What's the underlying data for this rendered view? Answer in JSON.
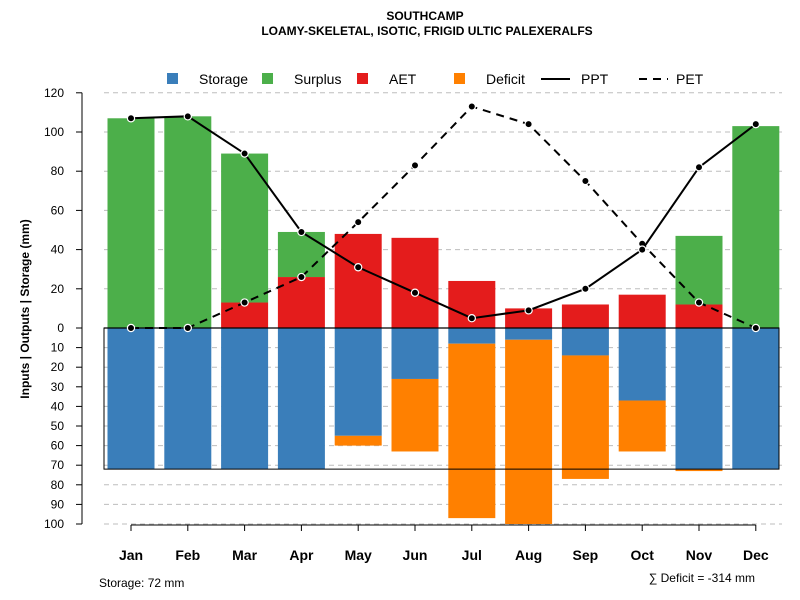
{
  "chart_data": {
    "type": "bar",
    "title": "SOUTHCAMP",
    "subtitle": "LOAMY-SKELETAL, ISOTIC, FRIGID ULTIC PALEXERALFS",
    "ylabel": "Inputs | Outputs | Storage    (mm)",
    "categories": [
      "Jan",
      "Feb",
      "Mar",
      "Apr",
      "May",
      "Jun",
      "Jul",
      "Aug",
      "Sep",
      "Oct",
      "Nov",
      "Dec"
    ],
    "upper_ticks": [
      "0",
      "20",
      "40",
      "60",
      "80",
      "100",
      "120"
    ],
    "lower_ticks": [
      "10",
      "20",
      "30",
      "40",
      "50",
      "60",
      "70",
      "80",
      "90",
      "100"
    ],
    "upper_ylim": [
      0,
      120
    ],
    "lower_ylim": [
      0,
      100
    ],
    "legend": {
      "position": "top",
      "entries": [
        {
          "label": "Storage",
          "kind": "box",
          "color": "#3a7eba"
        },
        {
          "label": "Surplus",
          "kind": "box",
          "color": "#4caf4a"
        },
        {
          "label": "AET",
          "kind": "box",
          "color": "#e41c1c"
        },
        {
          "label": "Deficit",
          "kind": "box",
          "color": "#ff8000"
        },
        {
          "label": "PPT",
          "kind": "solid-line",
          "color": "#000000"
        },
        {
          "label": "PET",
          "kind": "dashed-line",
          "color": "#000000"
        }
      ]
    },
    "series": [
      {
        "name": "AET",
        "position": "upper",
        "values": [
          0,
          0,
          13,
          26,
          48,
          46,
          24,
          10,
          12,
          17,
          12,
          0
        ]
      },
      {
        "name": "Surplus",
        "position": "upper",
        "values": [
          107,
          108,
          76,
          23,
          0,
          0,
          0,
          0,
          0,
          0,
          35,
          103
        ]
      },
      {
        "name": "Storage",
        "position": "lower",
        "values": [
          72,
          72,
          72,
          72,
          55,
          26,
          8,
          6,
          14,
          37,
          72,
          72
        ]
      },
      {
        "name": "Deficit",
        "position": "lower",
        "values": [
          0,
          0,
          0,
          0,
          5,
          37,
          89,
          94,
          63,
          26,
          1,
          0
        ]
      },
      {
        "name": "PPT",
        "type": "line",
        "values": [
          107,
          108,
          89,
          49,
          31,
          18,
          5,
          9,
          20,
          40,
          82,
          104
        ]
      },
      {
        "name": "PET",
        "type": "line",
        "values": [
          0,
          0,
          13,
          26,
          54,
          83,
          113,
          104,
          75,
          43,
          13,
          0
        ]
      }
    ],
    "storage_capacity": 72
  },
  "footer": {
    "storage_note": "Storage: 72 mm",
    "deficit_note": "∑ Deficit = -314 mm"
  }
}
